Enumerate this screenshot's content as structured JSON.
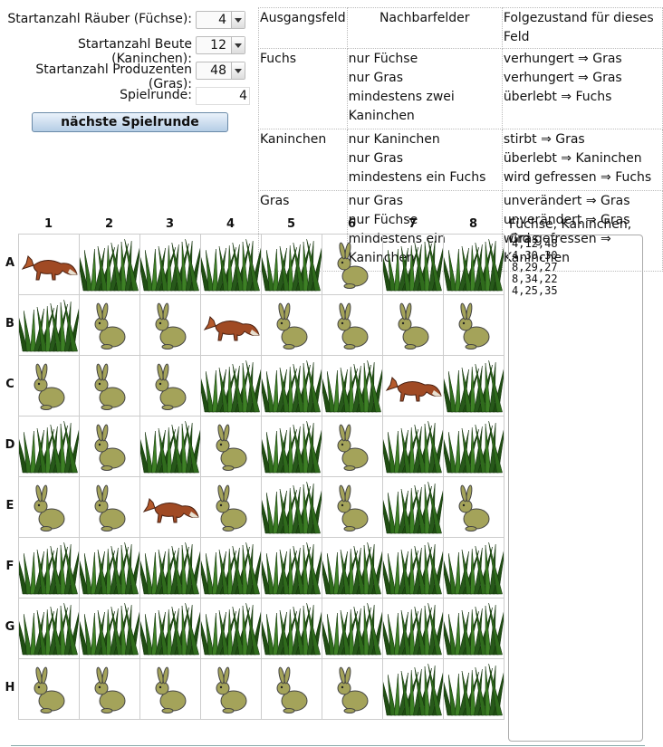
{
  "settings": [
    {
      "label": "Startanzahl Räuber (Füchse):",
      "value": 4
    },
    {
      "label": "Startanzahl Beute (Kaninchen):",
      "value": 12
    },
    {
      "label": "Startanzahl Produzenten (Gras):",
      "value": 48
    }
  ],
  "round": {
    "label": "Spielrunde:",
    "value": 4
  },
  "button": "nächste Spielrunde",
  "rules": {
    "headers": [
      "Ausgangsfeld",
      "Nachbarfelder",
      "Folgezustand für dieses Feld"
    ],
    "groups": [
      {
        "name": "Fuchs",
        "rows": [
          [
            "nur Füchse",
            "verhungert ⇒ Gras"
          ],
          [
            "nur Gras",
            "verhungert ⇒ Gras"
          ],
          [
            "mindestens zwei Kaninchen",
            "überlebt ⇒ Fuchs"
          ]
        ]
      },
      {
        "name": "Kaninchen",
        "rows": [
          [
            "nur Kaninchen",
            "stirbt ⇒ Gras"
          ],
          [
            "nur Gras",
            "überlebt ⇒ Kaninchen"
          ],
          [
            "mindestens ein Fuchs",
            "wird gefressen ⇒ Fuchs"
          ]
        ]
      },
      {
        "name": "Gras",
        "rows": [
          [
            "nur Gras",
            "unverändert ⇒ Gras"
          ],
          [
            "nur Füchse",
            "unverändert ⇒ Gras"
          ],
          [
            "mindestens ein Kaninchen",
            "wird gefressen ⇒ Kaninchen"
          ]
        ]
      }
    ]
  },
  "grid": {
    "columns": [
      "1",
      "2",
      "3",
      "4",
      "5",
      "6",
      "7",
      "8"
    ],
    "rows": [
      "A",
      "B",
      "C",
      "D",
      "E",
      "F",
      "G",
      "H"
    ]
  },
  "log": {
    "label": "Füchse, Kaninchen, Gras",
    "lines": [
      "4,12,48",
      "4,30,30",
      "8,29,27",
      "8,34,22",
      "4,25,35"
    ]
  }
}
